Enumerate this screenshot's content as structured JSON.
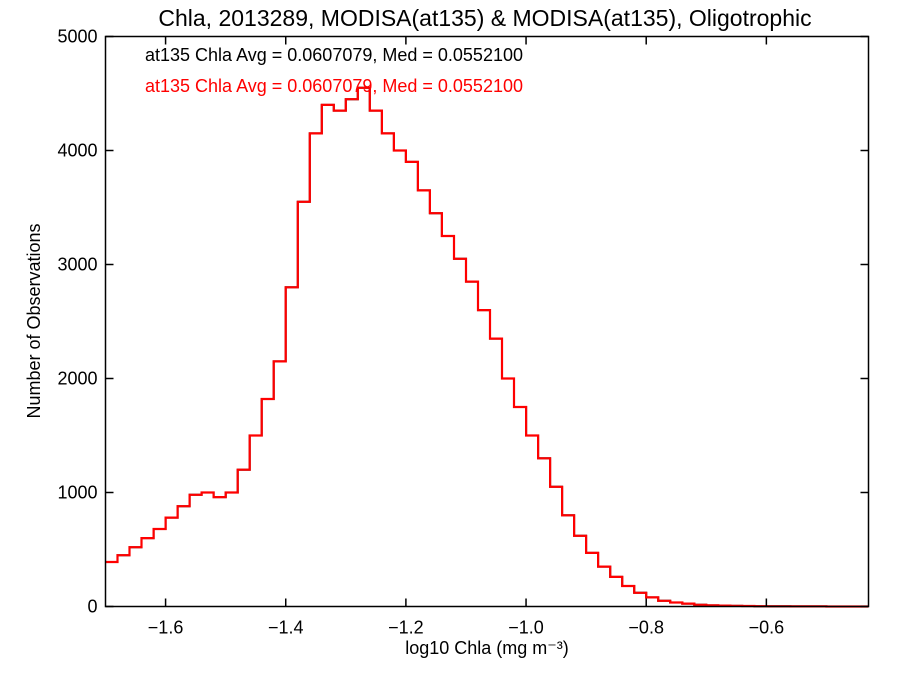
{
  "colors": {
    "axis": "#000000",
    "series_black": "#000000",
    "series_red": "#ff0000",
    "background": "#ffffff"
  },
  "chart_data": {
    "type": "line",
    "style": "step histogram",
    "title": "Chla, 2013289, MODISA(at135) & MODISA(at135), Oligotrophic",
    "xlabel": "log10 Chla (mg m⁻³)",
    "ylabel": "Number of Observations",
    "xlim": [
      -1.7,
      -0.43
    ],
    "ylim": [
      0,
      5000
    ],
    "xticks": [
      -1.6,
      -1.4,
      -1.2,
      -1.0,
      -0.8,
      -0.6
    ],
    "xtick_labels": [
      "−1.6",
      "−1.4",
      "−1.2",
      "−1.0",
      "−0.8",
      "−0.6"
    ],
    "yticks": [
      0,
      1000,
      2000,
      3000,
      4000,
      5000
    ],
    "ytick_labels": [
      "0",
      "1000",
      "2000",
      "3000",
      "4000",
      "5000"
    ],
    "grid": false,
    "annotations": [
      {
        "text": "at135 Chla Avg = 0.0607079, Med = 0.0552100",
        "color": "#000000"
      },
      {
        "text": "at135 Chla Avg = 0.0607079, Med = 0.0552100",
        "color": "#ff0000"
      }
    ],
    "x": [
      -1.7,
      -1.68,
      -1.66,
      -1.64,
      -1.62,
      -1.6,
      -1.58,
      -1.56,
      -1.54,
      -1.52,
      -1.5,
      -1.48,
      -1.46,
      -1.44,
      -1.42,
      -1.4,
      -1.38,
      -1.36,
      -1.34,
      -1.32,
      -1.3,
      -1.28,
      -1.26,
      -1.24,
      -1.22,
      -1.2,
      -1.18,
      -1.16,
      -1.14,
      -1.12,
      -1.1,
      -1.08,
      -1.06,
      -1.04,
      -1.02,
      -1.0,
      -0.98,
      -0.96,
      -0.94,
      -0.92,
      -0.9,
      -0.88,
      -0.86,
      -0.84,
      -0.82,
      -0.8,
      -0.78,
      -0.76,
      -0.74,
      -0.72,
      -0.7,
      -0.68,
      -0.66,
      -0.64,
      -0.62,
      -0.6,
      -0.58,
      -0.56,
      -0.54,
      -0.52,
      -0.5,
      -0.48,
      -0.46,
      -0.44
    ],
    "series": [
      {
        "color": "#000000",
        "values": [
          390,
          450,
          520,
          600,
          680,
          780,
          880,
          980,
          1000,
          960,
          1000,
          1200,
          1500,
          1820,
          2150,
          2800,
          3550,
          4150,
          4400,
          4350,
          4450,
          4550,
          4350,
          4150,
          4000,
          3900,
          3650,
          3450,
          3250,
          3050,
          2850,
          2600,
          2350,
          2000,
          1750,
          1500,
          1300,
          1050,
          800,
          620,
          470,
          350,
          260,
          180,
          120,
          80,
          50,
          35,
          25,
          15,
          10,
          8,
          5,
          4,
          3,
          2,
          2,
          1,
          1,
          1,
          0,
          0,
          0,
          0
        ]
      },
      {
        "color": "#ff0000",
        "values": [
          390,
          450,
          520,
          600,
          680,
          780,
          880,
          980,
          1000,
          960,
          1000,
          1200,
          1500,
          1820,
          2150,
          2800,
          3550,
          4150,
          4400,
          4350,
          4450,
          4550,
          4350,
          4150,
          4000,
          3900,
          3650,
          3450,
          3250,
          3050,
          2850,
          2600,
          2350,
          2000,
          1750,
          1500,
          1300,
          1050,
          800,
          620,
          470,
          350,
          260,
          180,
          120,
          80,
          50,
          35,
          25,
          15,
          10,
          8,
          5,
          4,
          3,
          2,
          2,
          1,
          1,
          1,
          0,
          0,
          0,
          0
        ]
      }
    ]
  }
}
